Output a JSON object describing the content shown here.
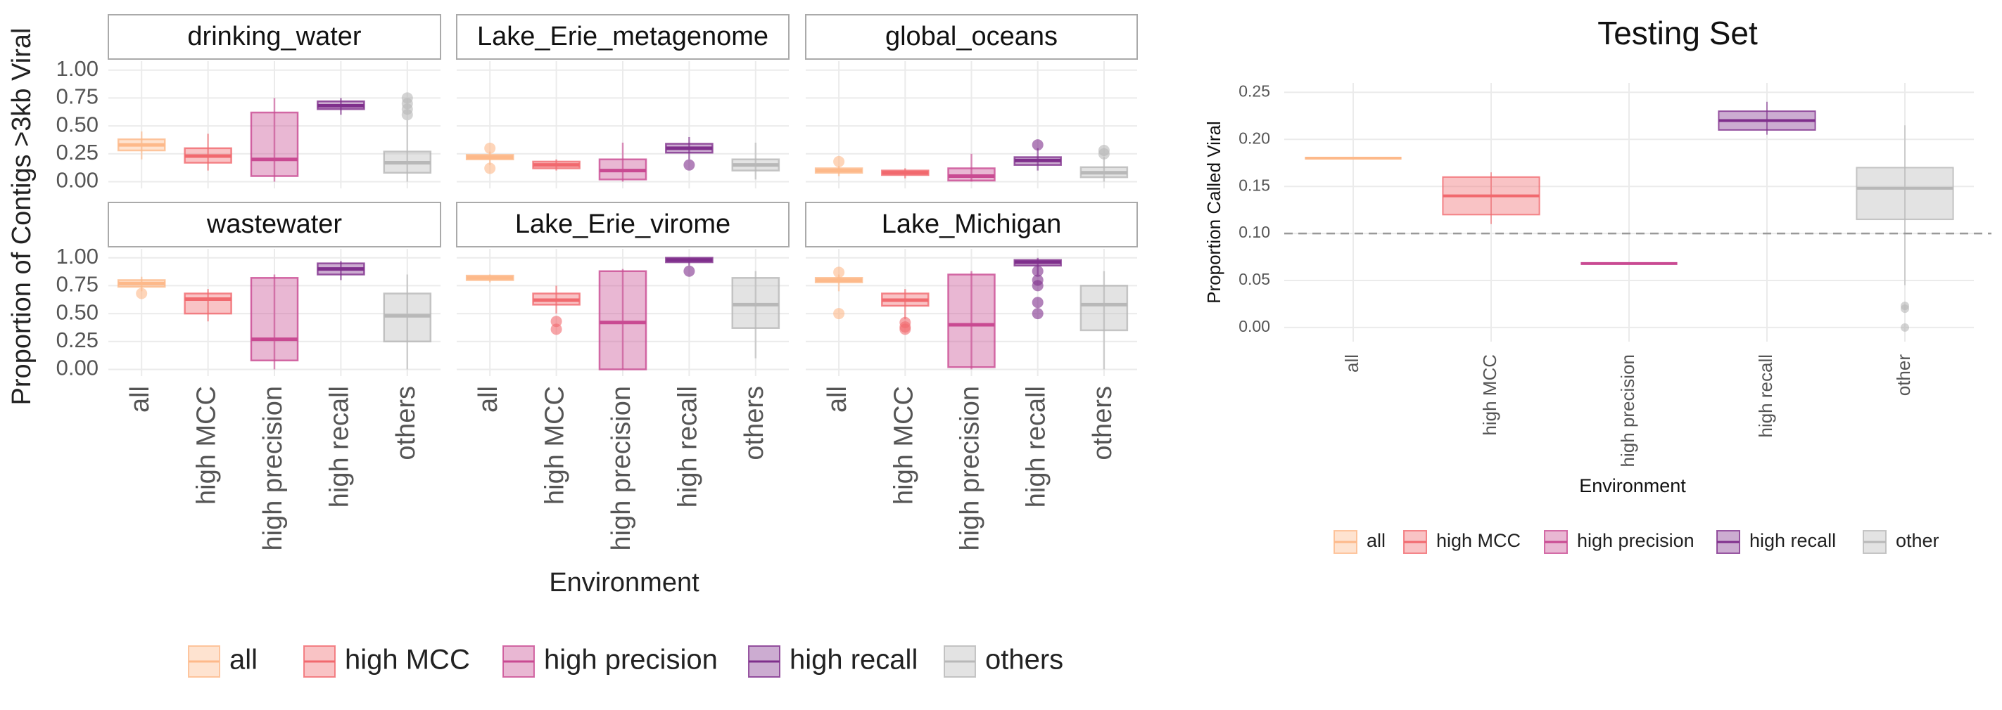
{
  "chart_data": [
    {
      "type": "facet_box",
      "x_label": "Environment",
      "y_label": "Proportion of Contigs >3kb Viral",
      "categories": [
        "all",
        "high MCC",
        "high precision",
        "high recall",
        "others"
      ],
      "colors": [
        "#fdb98a",
        "#f1696e",
        "#c94a92",
        "#7f2f8c",
        "#b8b8b8"
      ],
      "ylim": [
        -0.06,
        1.08
      ],
      "yticks": [
        {
          "value": 0,
          "label": "0.00"
        },
        {
          "value": 0.25,
          "label": "0.25"
        },
        {
          "value": 0.5,
          "label": "0.50"
        },
        {
          "value": 0.75,
          "label": "0.75"
        },
        {
          "value": 1,
          "label": "1.00"
        }
      ],
      "grid": true,
      "legend": "bottom",
      "facets": [
        {
          "title": "drinking_water",
          "boxes": [
            {
              "min": 0.2,
              "q1": 0.28,
              "median": 0.33,
              "q3": 0.38,
              "max": 0.45,
              "outliers": []
            },
            {
              "min": 0.1,
              "q1": 0.17,
              "median": 0.23,
              "q3": 0.3,
              "max": 0.43,
              "outliers": []
            },
            {
              "min": 0,
              "q1": 0.05,
              "median": 0.2,
              "q3": 0.62,
              "max": 0.75,
              "outliers": []
            },
            {
              "min": 0.6,
              "q1": 0.65,
              "median": 0.68,
              "q3": 0.72,
              "max": 0.75,
              "outliers": []
            },
            {
              "min": 0,
              "q1": 0.08,
              "median": 0.17,
              "q3": 0.27,
              "max": 0.55,
              "outliers": [
                0.6,
                0.65,
                0.7,
                0.75
              ]
            }
          ]
        },
        {
          "title": "Lake_Erie_metagenome",
          "boxes": [
            {
              "min": 0.15,
              "q1": 0.2,
              "median": 0.22,
              "q3": 0.24,
              "max": 0.27,
              "outliers": [
                0.3,
                0.12
              ]
            },
            {
              "min": 0.1,
              "q1": 0.12,
              "median": 0.15,
              "q3": 0.18,
              "max": 0.2,
              "outliers": []
            },
            {
              "min": 0,
              "q1": 0.02,
              "median": 0.1,
              "q3": 0.2,
              "max": 0.35,
              "outliers": []
            },
            {
              "min": 0.2,
              "q1": 0.26,
              "median": 0.3,
              "q3": 0.34,
              "max": 0.4,
              "outliers": [
                0.15
              ]
            },
            {
              "min": 0.02,
              "q1": 0.1,
              "median": 0.15,
              "q3": 0.2,
              "max": 0.35,
              "outliers": []
            }
          ]
        },
        {
          "title": "global_oceans",
          "boxes": [
            {
              "min": 0.05,
              "q1": 0.08,
              "median": 0.1,
              "q3": 0.12,
              "max": 0.14,
              "outliers": [
                0.18
              ]
            },
            {
              "min": 0.03,
              "q1": 0.06,
              "median": 0.08,
              "q3": 0.1,
              "max": 0.12,
              "outliers": []
            },
            {
              "min": 0,
              "q1": 0.01,
              "median": 0.05,
              "q3": 0.12,
              "max": 0.25,
              "outliers": []
            },
            {
              "min": 0.1,
              "q1": 0.15,
              "median": 0.19,
              "q3": 0.22,
              "max": 0.3,
              "outliers": [
                0.33
              ]
            },
            {
              "min": 0,
              "q1": 0.04,
              "median": 0.08,
              "q3": 0.13,
              "max": 0.22,
              "outliers": [
                0.25,
                0.28
              ]
            }
          ]
        },
        {
          "title": "wastewater",
          "boxes": [
            {
              "min": 0.7,
              "q1": 0.74,
              "median": 0.77,
              "q3": 0.8,
              "max": 0.83,
              "outliers": [
                0.68
              ]
            },
            {
              "min": 0.43,
              "q1": 0.5,
              "median": 0.63,
              "q3": 0.68,
              "max": 0.72,
              "outliers": []
            },
            {
              "min": 0,
              "q1": 0.08,
              "median": 0.27,
              "q3": 0.82,
              "max": 0.85,
              "outliers": []
            },
            {
              "min": 0.8,
              "q1": 0.85,
              "median": 0.9,
              "q3": 0.95,
              "max": 0.97,
              "outliers": []
            },
            {
              "min": 0,
              "q1": 0.25,
              "median": 0.48,
              "q3": 0.68,
              "max": 0.85,
              "outliers": []
            }
          ]
        },
        {
          "title": "Lake_Erie_virome",
          "boxes": [
            {
              "min": 0.78,
              "q1": 0.8,
              "median": 0.82,
              "q3": 0.84,
              "max": 0.85,
              "outliers": []
            },
            {
              "min": 0.5,
              "q1": 0.58,
              "median": 0.62,
              "q3": 0.68,
              "max": 0.75,
              "outliers": [
                0.43,
                0.36
              ]
            },
            {
              "min": 0,
              "q1": 0,
              "median": 0.42,
              "q3": 0.88,
              "max": 0.9,
              "outliers": []
            },
            {
              "min": 0.93,
              "q1": 0.96,
              "median": 0.98,
              "q3": 1,
              "max": 1,
              "outliers": [
                0.88
              ]
            },
            {
              "min": 0.1,
              "q1": 0.37,
              "median": 0.58,
              "q3": 0.82,
              "max": 0.88,
              "outliers": []
            }
          ]
        },
        {
          "title": "Lake_Michigan",
          "boxes": [
            {
              "min": 0.7,
              "q1": 0.78,
              "median": 0.8,
              "q3": 0.82,
              "max": 0.85,
              "outliers": [
                0.87,
                0.5
              ]
            },
            {
              "min": 0.45,
              "q1": 0.57,
              "median": 0.62,
              "q3": 0.68,
              "max": 0.72,
              "outliers": [
                0.42,
                0.38,
                0.36
              ]
            },
            {
              "min": 0,
              "q1": 0.02,
              "median": 0.4,
              "q3": 0.85,
              "max": 0.88,
              "outliers": []
            },
            {
              "min": 0.85,
              "q1": 0.93,
              "median": 0.96,
              "q3": 0.98,
              "max": 1,
              "outliers": [
                0.88,
                0.8,
                0.75,
                0.6,
                0.5
              ]
            },
            {
              "min": 0,
              "q1": 0.35,
              "median": 0.58,
              "q3": 0.75,
              "max": 0.88,
              "outliers": []
            }
          ]
        }
      ]
    },
    {
      "type": "box",
      "title": "Testing Set",
      "x_label": "Environment",
      "y_label": "Proportion Called Viral",
      "categories": [
        "all",
        "high MCC",
        "high precision",
        "high recall",
        "other"
      ],
      "colors": [
        "#fdb98a",
        "#f1696e",
        "#c94a92",
        "#7f2f8c",
        "#b8b8b8"
      ],
      "ylim": [
        -0.015,
        0.26
      ],
      "yticks": [
        {
          "value": 0,
          "label": "0.00"
        },
        {
          "value": 0.05,
          "label": "0.05"
        },
        {
          "value": 0.1,
          "label": "0.10"
        },
        {
          "value": 0.15,
          "label": "0.15"
        },
        {
          "value": 0.2,
          "label": "0.20"
        },
        {
          "value": 0.25,
          "label": "0.25"
        }
      ],
      "grid": true,
      "legend": "bottom",
      "hline": 0.1,
      "boxes": [
        {
          "min": 0.18,
          "q1": 0.18,
          "median": 0.18,
          "q3": 0.18,
          "max": 0.18,
          "outliers": []
        },
        {
          "min": 0.11,
          "q1": 0.12,
          "median": 0.14,
          "q3": 0.16,
          "max": 0.165,
          "outliers": []
        },
        {
          "min": 0.068,
          "q1": 0.068,
          "median": 0.068,
          "q3": 0.068,
          "max": 0.068,
          "outliers": []
        },
        {
          "min": 0.205,
          "q1": 0.21,
          "median": 0.22,
          "q3": 0.23,
          "max": 0.24,
          "outliers": []
        },
        {
          "min": 0.045,
          "q1": 0.115,
          "median": 0.148,
          "q3": 0.17,
          "max": 0.215,
          "outliers": [
            0.023,
            0.02,
            0
          ]
        }
      ]
    }
  ]
}
